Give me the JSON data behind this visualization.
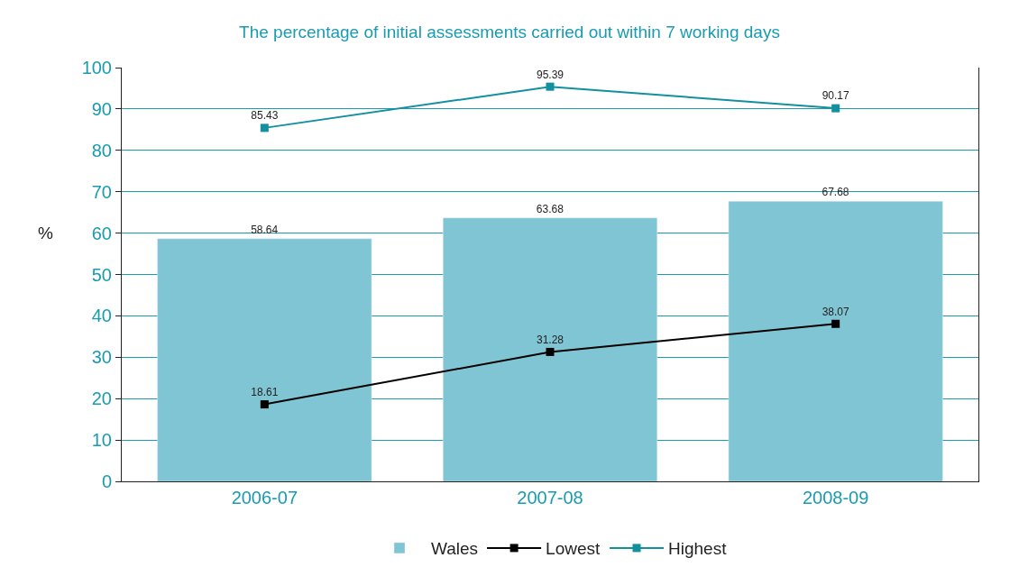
{
  "chart_data": {
    "type": "bar",
    "title": "The percentage of initial assessments carried out within 7 working days",
    "ylabel": "%",
    "categories": [
      "2006-07",
      "2007-08",
      "2008-09"
    ],
    "series": [
      {
        "name": "Wales",
        "color": "#80c5d4",
        "values": [
          58.64,
          63.68,
          67.68
        ]
      },
      {
        "name": "Lowest",
        "type": "line",
        "color": "#000000",
        "values": [
          18.61,
          31.28,
          38.07
        ]
      },
      {
        "name": "Highest",
        "type": "line",
        "color": "#13909f",
        "values": [
          85.43,
          95.39,
          90.17
        ]
      }
    ],
    "ylim": [
      0,
      100
    ],
    "yticks": [
      0,
      10,
      20,
      30,
      40,
      50,
      60,
      70,
      80,
      90,
      100
    ],
    "grid": "y",
    "legend": "bottom",
    "marker": "square",
    "data_labels": true
  }
}
